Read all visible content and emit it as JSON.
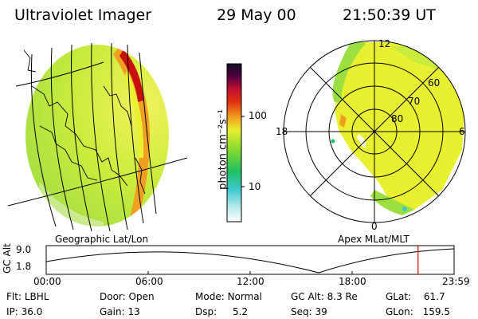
{
  "header": {
    "title": "Ultraviolet Imager",
    "date": "29 May 00",
    "time": "21:50:39 UT"
  },
  "colorbar": {
    "label": "photon cm⁻²s⁻¹",
    "tick_100": "100",
    "tick_10": "10"
  },
  "geo_panel": {
    "label": "Geographic Lat/Lon"
  },
  "polar_panel": {
    "label": "Apex MLat/MLT",
    "mlt_12": "12",
    "mlt_18": "18",
    "mlt_6": "6",
    "mlt_0": "0",
    "lat_60": "60",
    "lat_70": "70",
    "lat_80": "80"
  },
  "timeline": {
    "ylabel": "GC Alt",
    "y_top": "9.0",
    "y_bot": "1.8",
    "ticks": [
      "00:00",
      "06:00",
      "12:00",
      "18:00",
      "23:59"
    ],
    "current_fraction": 0.9116
  },
  "info": {
    "flt_label": "Flt:",
    "flt_value": "LBHL",
    "ip_label": "IP:",
    "ip_value": "36.0",
    "door_label": "Door:",
    "door_value": "Open",
    "gain_label": "Gain:",
    "gain_value": "13",
    "mode_label": "Mode:",
    "mode_value": "Normal",
    "dsp_label": "Dsp:",
    "dsp_value": "5.2",
    "gcalt_label": "GC Alt:",
    "gcalt_value": "8.3 Re",
    "seq_label": "Seq:",
    "seq_value": "39",
    "glat_label": "GLat:",
    "glat_value": "61.7",
    "glon_label": "GLon:",
    "glon_value": "159.5"
  },
  "colors": {
    "marker": "#e00000",
    "aurora_green": "#9be040",
    "aurora_yellow": "#e8f030",
    "aurora_red": "#c81010"
  }
}
